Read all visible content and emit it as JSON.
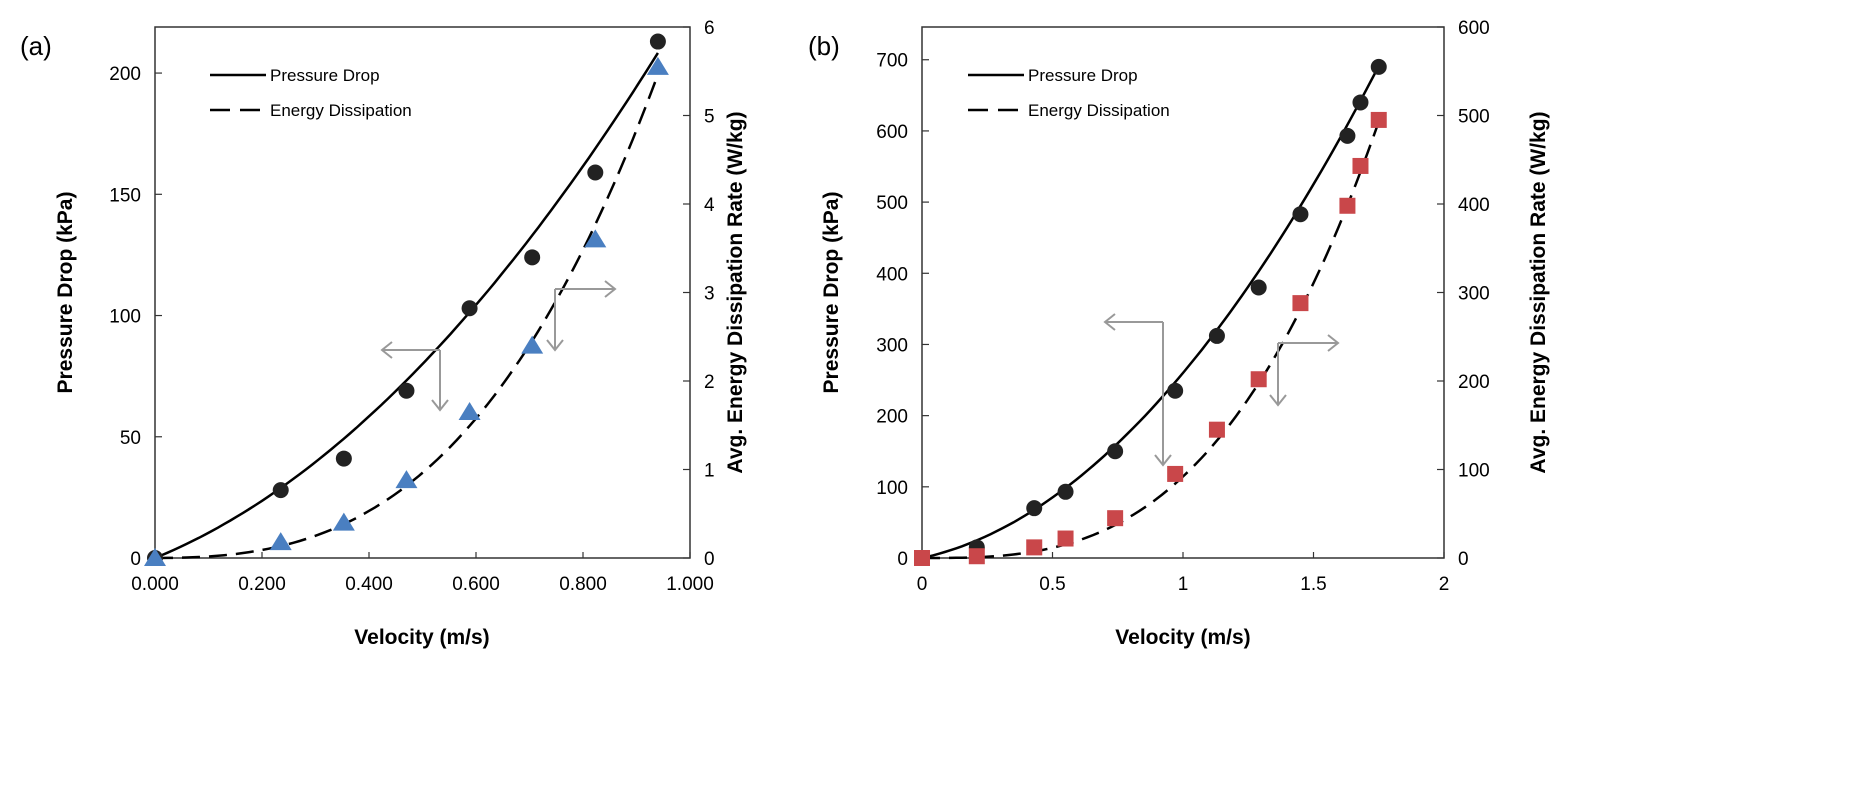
{
  "chart_data": [
    {
      "type": "scatter",
      "panel_label": "(a)",
      "xlabel": "Velocity (m/s)",
      "ylabel": "Pressure Drop (kPa)",
      "y2label": "Avg. Energy Dissipation Rate (W/kg)",
      "xlim": [
        0,
        1
      ],
      "ylim": [
        0,
        219
      ],
      "y2lim": [
        0,
        6
      ],
      "xticks": [
        "0.000",
        "0.200",
        "0.400",
        "0.600",
        "0.800",
        "1.000"
      ],
      "xtick_values": [
        0,
        0.2,
        0.4,
        0.6,
        0.8,
        1.0
      ],
      "yticks": [
        0,
        50,
        100,
        150,
        200
      ],
      "y2ticks": [
        0,
        1,
        2,
        3,
        4,
        5,
        6
      ],
      "legend": [
        "Pressure Drop",
        "Energy Dissipation"
      ],
      "legend_position": "top-left",
      "series": [
        {
          "name": "Pressure Drop",
          "axis": "left",
          "marker": "circle",
          "color": "#222222",
          "x": [
            0,
            0.235,
            0.353,
            0.47,
            0.588,
            0.705,
            0.823,
            0.94
          ],
          "y": [
            0,
            28,
            41,
            69,
            103,
            124,
            159,
            213
          ],
          "fit": "solid"
        },
        {
          "name": "Energy Dissipation",
          "axis": "right",
          "marker": "triangle",
          "color": "#4a7fc1",
          "x": [
            0,
            0.235,
            0.353,
            0.47,
            0.588,
            0.705,
            0.823,
            0.94
          ],
          "y": [
            0,
            0.18,
            0.4,
            0.88,
            1.65,
            2.4,
            3.6,
            5.55
          ],
          "fit": "dashed"
        }
      ]
    },
    {
      "type": "scatter",
      "panel_label": "(b)",
      "xlabel": "Velocity (m/s)",
      "ylabel": "Pressure Drop (kPa)",
      "y2label": "Avg. Energy Dissipation Rate (W/kg)",
      "xlim": [
        0,
        2
      ],
      "ylim": [
        0,
        746
      ],
      "y2lim": [
        0,
        600
      ],
      "xticks": [
        "0",
        "0.5",
        "1",
        "1.5",
        "2"
      ],
      "xtick_values": [
        0,
        0.5,
        1,
        1.5,
        2
      ],
      "yticks": [
        0,
        100,
        200,
        300,
        400,
        500,
        600,
        700
      ],
      "y2ticks": [
        0,
        100,
        200,
        300,
        400,
        500,
        600
      ],
      "legend": [
        "Pressure Drop",
        "Energy Dissipation"
      ],
      "legend_position": "top-left",
      "series": [
        {
          "name": "Pressure Drop",
          "axis": "left",
          "marker": "circle",
          "color": "#222222",
          "x": [
            0,
            0.21,
            0.43,
            0.55,
            0.74,
            0.97,
            1.13,
            1.29,
            1.45,
            1.63,
            1.68,
            1.75
          ],
          "y": [
            0,
            15,
            70,
            93,
            150,
            235,
            312,
            380,
            483,
            593,
            640,
            690
          ],
          "fit": "solid"
        },
        {
          "name": "Energy Dissipation",
          "axis": "right",
          "marker": "square",
          "color": "#c9474a",
          "x": [
            0,
            0.21,
            0.43,
            0.55,
            0.74,
            0.97,
            1.13,
            1.29,
            1.45,
            1.63,
            1.68,
            1.75
          ],
          "y": [
            0,
            2,
            12,
            22,
            45,
            95,
            145,
            202,
            288,
            398,
            443,
            495
          ],
          "fit": "dashed"
        }
      ]
    }
  ]
}
